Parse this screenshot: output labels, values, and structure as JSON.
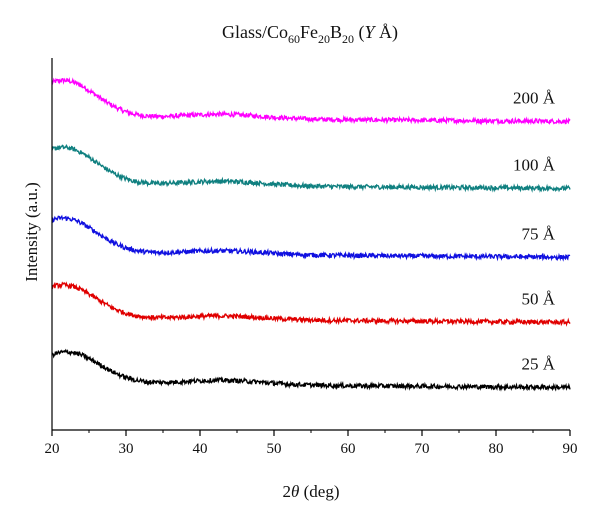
{
  "chart_data": {
    "type": "line",
    "title": {
      "prefix": "Glass/Co",
      "co_sub": "60",
      "fe": "Fe",
      "fe_sub": "20",
      "b": "B",
      "b_sub": "20",
      "var_open": " (",
      "var": "Y",
      "var_close": " Å)"
    },
    "xlabel": {
      "sym": "2",
      "theta": "θ",
      "unit": " (deg)"
    },
    "ylabel": "Intensity (a.u.)",
    "xlim": [
      20,
      90
    ],
    "xticks": [
      "20",
      "30",
      "40",
      "50",
      "60",
      "70",
      "80",
      "90"
    ],
    "y_ticks_labeled": false,
    "grid": false,
    "legend": "none",
    "series": [
      {
        "name": "200 Å",
        "color": "#ff00ff",
        "baseline": 0.84,
        "peak_amp": 0.1,
        "peak_x": 21.5,
        "tail": 0.012
      },
      {
        "name": "100 Å",
        "color": "#108080",
        "baseline": 0.66,
        "peak_amp": 0.1,
        "peak_x": 21.5,
        "tail": 0.012
      },
      {
        "name": "75 Å",
        "color": "#1010e0",
        "baseline": 0.475,
        "peak_amp": 0.095,
        "peak_x": 21.5,
        "tail": 0.01
      },
      {
        "name": "50 Å",
        "color": "#e00000",
        "baseline": 0.3,
        "peak_amp": 0.09,
        "peak_x": 21.5,
        "tail": 0.01
      },
      {
        "name": "25 Å",
        "color": "#000000",
        "baseline": 0.125,
        "peak_amp": 0.085,
        "peak_x": 22.0,
        "tail": 0.012
      }
    ]
  }
}
